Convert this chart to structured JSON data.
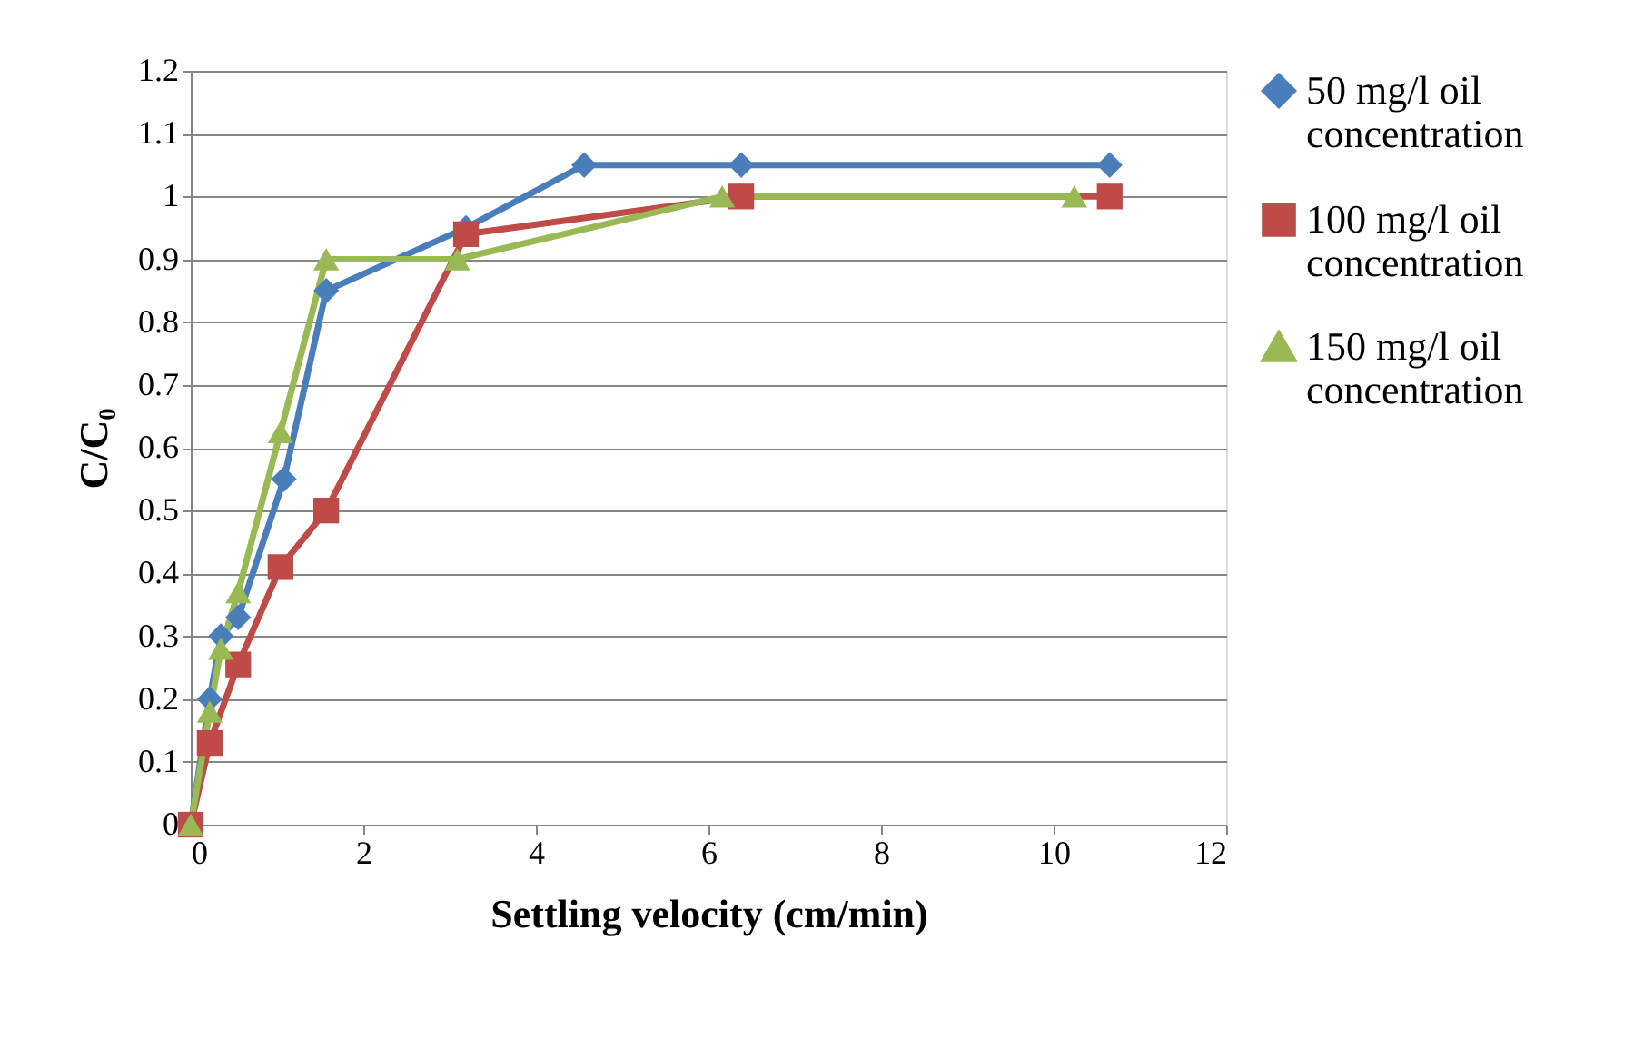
{
  "chart_data": {
    "type": "line",
    "xlabel": "Settling velocity (cm/min)",
    "ylabel": "C/C₀",
    "xlim": [
      0,
      12
    ],
    "xticks": [
      0,
      2,
      4,
      6,
      8,
      10,
      12
    ],
    "ylim": [
      0,
      1.2
    ],
    "yticks": [
      0,
      0.1,
      0.2,
      0.3,
      0.4,
      0.5,
      0.6,
      0.7,
      0.8,
      0.9,
      1,
      1.1,
      1.2
    ],
    "grid": "y",
    "legend": "right",
    "series": [
      {
        "name": "50 mg/l oil concentration",
        "color": "#4a7ebb",
        "marker": "diamond",
        "x": [
          0,
          0.22,
          0.35,
          0.55,
          1.08,
          1.57,
          3.19,
          4.56,
          6.38,
          10.65
        ],
        "values": [
          0,
          0.2,
          0.3,
          0.33,
          0.55,
          0.85,
          0.95,
          1.05,
          1.05,
          1.05
        ]
      },
      {
        "name": "100 mg/l oil concentration",
        "color": "#be4b48",
        "marker": "square",
        "x": [
          0,
          0.22,
          0.55,
          1.04,
          1.57,
          3.19,
          6.38,
          10.65
        ],
        "values": [
          0,
          0.13,
          0.255,
          0.41,
          0.5,
          0.94,
          1.0,
          1.0
        ]
      },
      {
        "name": "150 mg/l oil concentration",
        "color": "#98b954",
        "marker": "triangle",
        "x": [
          0,
          0.22,
          0.35,
          0.55,
          1.04,
          1.57,
          3.09,
          6.16,
          10.24
        ],
        "values": [
          0,
          0.18,
          0.28,
          0.37,
          0.625,
          0.9,
          0.9,
          1.0,
          1.0
        ]
      }
    ]
  }
}
